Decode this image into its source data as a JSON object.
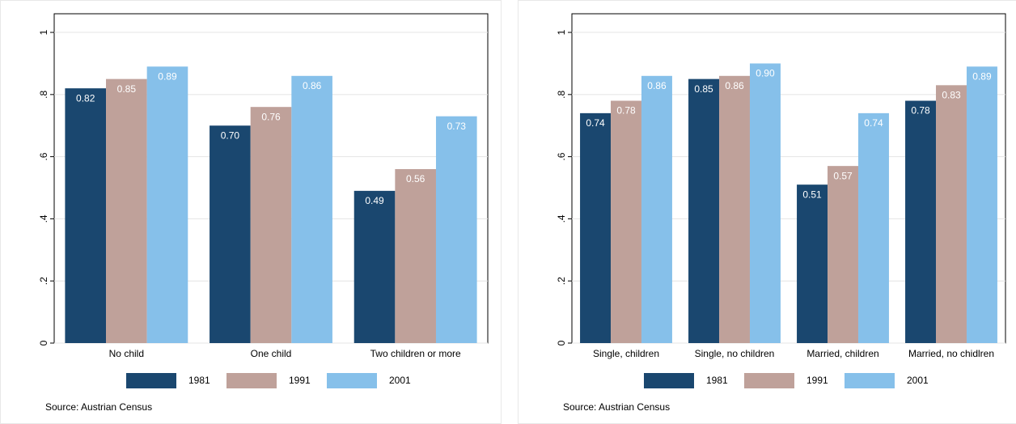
{
  "chart_data": [
    {
      "type": "bar",
      "categories": [
        "No child",
        "One child",
        "Two children or more"
      ],
      "series": [
        {
          "name": "1981",
          "color": "#1a476f",
          "values": [
            0.82,
            0.7,
            0.49
          ],
          "value_labels": [
            "0.82",
            "0.70",
            "0.49"
          ]
        },
        {
          "name": "1991",
          "color": "#bfa19a",
          "values": [
            0.85,
            0.76,
            0.56
          ],
          "value_labels": [
            "0.85",
            "0.76",
            "0.56"
          ]
        },
        {
          "name": "2001",
          "color": "#86c0ea",
          "values": [
            0.89,
            0.86,
            0.73
          ],
          "value_labels": [
            "0.89",
            "0.86",
            "0.73"
          ]
        }
      ],
      "ylim": [
        0,
        1.06
      ],
      "yticks": [
        0,
        {
          "value": 0.2,
          "label": ".2"
        },
        {
          "value": 0.4,
          "label": ".4"
        },
        {
          "value": 0.6,
          "label": ".6"
        },
        {
          "value": 0.8,
          "label": ".8"
        },
        1
      ],
      "grid": true,
      "legend": "bottom",
      "note": "Source: Austrian Census"
    },
    {
      "type": "bar",
      "categories": [
        "Single, children",
        "Single, no children",
        "Married, children",
        "Married, no chidlren"
      ],
      "series": [
        {
          "name": "1981",
          "color": "#1a476f",
          "values": [
            0.74,
            0.85,
            0.51,
            0.78
          ],
          "value_labels": [
            "0.74",
            "0.85",
            "0.51",
            "0.78"
          ]
        },
        {
          "name": "1991",
          "color": "#bfa19a",
          "values": [
            0.78,
            0.86,
            0.57,
            0.83
          ],
          "value_labels": [
            "0.78",
            "0.86",
            "0.57",
            "0.83"
          ]
        },
        {
          "name": "2001",
          "color": "#86c0ea",
          "values": [
            0.86,
            0.9,
            0.74,
            0.89
          ],
          "value_labels": [
            "0.86",
            "0.90",
            "0.74",
            "0.89"
          ]
        }
      ],
      "ylim": [
        0,
        1.06
      ],
      "yticks": [
        0,
        {
          "value": 0.2,
          "label": ".2"
        },
        {
          "value": 0.4,
          "label": ".4"
        },
        {
          "value": 0.6,
          "label": ".6"
        },
        {
          "value": 0.8,
          "label": ".8"
        },
        1
      ],
      "grid": true,
      "legend": "bottom",
      "note": "Source: Austrian Census"
    }
  ]
}
